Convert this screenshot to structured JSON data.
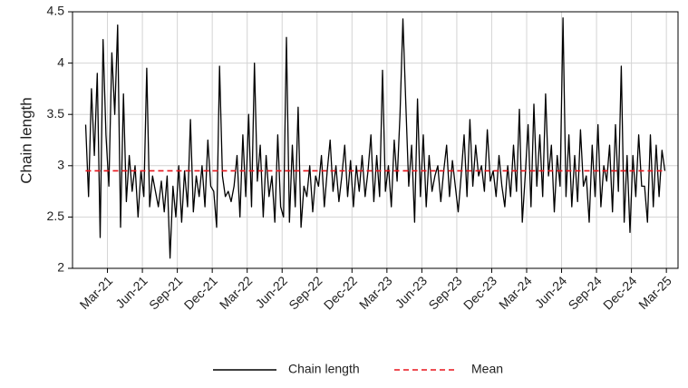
{
  "chart_data": {
    "type": "line",
    "y_label": "Chain length",
    "xlim": [
      "2020-12",
      "2025-04"
    ],
    "ylim": [
      2,
      4.5
    ],
    "yticks": [
      2,
      2.5,
      3,
      3.5,
      4,
      4.5
    ],
    "grid": true,
    "legend": "bottom",
    "xticks": [
      {
        "value": "2021-03",
        "label": "Mar-21"
      },
      {
        "value": "2021-06",
        "label": "Jun-21"
      },
      {
        "value": "2021-09",
        "label": "Sep-21"
      },
      {
        "value": "2021-12",
        "label": "Dec-21"
      },
      {
        "value": "2022-03",
        "label": "Mar-22"
      },
      {
        "value": "2022-06",
        "label": "Jun-22"
      },
      {
        "value": "2022-09",
        "label": "Sep-22"
      },
      {
        "value": "2022-12",
        "label": "Dec-22"
      },
      {
        "value": "2023-03",
        "label": "Mar-23"
      },
      {
        "value": "2023-06",
        "label": "Jun-23"
      },
      {
        "value": "2023-09",
        "label": "Sep-23"
      },
      {
        "value": "2023-12",
        "label": "Dec-23"
      },
      {
        "value": "2024-03",
        "label": "Mar-24"
      },
      {
        "value": "2024-06",
        "label": "Jun-24"
      },
      {
        "value": "2024-09",
        "label": "Sep-24"
      },
      {
        "value": "2024-12",
        "label": "Dec-24"
      },
      {
        "value": "2025-03",
        "label": "Mar-25"
      }
    ],
    "x": [
      "2021-01",
      "2021-01",
      "2021-01",
      "2021-01",
      "2021-02",
      "2021-02",
      "2021-02",
      "2021-02",
      "2021-03",
      "2021-03",
      "2021-03",
      "2021-03",
      "2021-04",
      "2021-04",
      "2021-04",
      "2021-04",
      "2021-05",
      "2021-05",
      "2021-05",
      "2021-05",
      "2021-06",
      "2021-06",
      "2021-06",
      "2021-06",
      "2021-07",
      "2021-07",
      "2021-07",
      "2021-07",
      "2021-08",
      "2021-08",
      "2021-08",
      "2021-08",
      "2021-09",
      "2021-09",
      "2021-09",
      "2021-09",
      "2021-10",
      "2021-10",
      "2021-10",
      "2021-10",
      "2021-11",
      "2021-11",
      "2021-11",
      "2021-11",
      "2021-12",
      "2021-12",
      "2021-12",
      "2021-12",
      "2022-01",
      "2022-01",
      "2022-01",
      "2022-01",
      "2022-02",
      "2022-02",
      "2022-02",
      "2022-02",
      "2022-03",
      "2022-03",
      "2022-03",
      "2022-03",
      "2022-04",
      "2022-04",
      "2022-04",
      "2022-04",
      "2022-05",
      "2022-05",
      "2022-05",
      "2022-05",
      "2022-06",
      "2022-06",
      "2022-06",
      "2022-06",
      "2022-07",
      "2022-07",
      "2022-07",
      "2022-07",
      "2022-08",
      "2022-08",
      "2022-08",
      "2022-08",
      "2022-09",
      "2022-09",
      "2022-09",
      "2022-09",
      "2022-10",
      "2022-10",
      "2022-10",
      "2022-10",
      "2022-11",
      "2022-11",
      "2022-11",
      "2022-11",
      "2022-12",
      "2022-12",
      "2022-12",
      "2022-12",
      "2023-01",
      "2023-01",
      "2023-01",
      "2023-01",
      "2023-02",
      "2023-02",
      "2023-02",
      "2023-02",
      "2023-03",
      "2023-03",
      "2023-03",
      "2023-03",
      "2023-04",
      "2023-04",
      "2023-04",
      "2023-04",
      "2023-05",
      "2023-05",
      "2023-05",
      "2023-05",
      "2023-06",
      "2023-06",
      "2023-06",
      "2023-06",
      "2023-07",
      "2023-07",
      "2023-07",
      "2023-07",
      "2023-08",
      "2023-08",
      "2023-08",
      "2023-08",
      "2023-09",
      "2023-09",
      "2023-09",
      "2023-09",
      "2023-10",
      "2023-10",
      "2023-10",
      "2023-10",
      "2023-11",
      "2023-11",
      "2023-11",
      "2023-11",
      "2023-12",
      "2023-12",
      "2023-12",
      "2023-12",
      "2024-01",
      "2024-01",
      "2024-01",
      "2024-01",
      "2024-02",
      "2024-02",
      "2024-02",
      "2024-02",
      "2024-03",
      "2024-03",
      "2024-03",
      "2024-03",
      "2024-04",
      "2024-04",
      "2024-04",
      "2024-04",
      "2024-05",
      "2024-05",
      "2024-05",
      "2024-05",
      "2024-06",
      "2024-06",
      "2024-06",
      "2024-06",
      "2024-07",
      "2024-07",
      "2024-07",
      "2024-07",
      "2024-08",
      "2024-08",
      "2024-08",
      "2024-08",
      "2024-09",
      "2024-09",
      "2024-09",
      "2024-09",
      "2024-10",
      "2024-10",
      "2024-10",
      "2024-10",
      "2024-11",
      "2024-11",
      "2024-11",
      "2024-11",
      "2024-12",
      "2024-12",
      "2024-12",
      "2024-12",
      "2025-01",
      "2025-01",
      "2025-01",
      "2025-01",
      "2025-02",
      "2025-02",
      "2025-02",
      "2025-02"
    ],
    "series": [
      {
        "name": "Chain length",
        "color": "#000000",
        "values": [
          3.4,
          2.7,
          3.75,
          3.1,
          3.9,
          2.3,
          4.23,
          3.3,
          2.8,
          4.1,
          3.5,
          4.37,
          2.4,
          3.7,
          2.65,
          3.1,
          2.75,
          3.0,
          2.5,
          2.95,
          2.7,
          3.95,
          2.6,
          2.9,
          2.75,
          2.6,
          2.85,
          2.55,
          2.9,
          2.1,
          2.8,
          2.5,
          3.0,
          2.45,
          2.95,
          2.6,
          3.45,
          2.55,
          2.9,
          2.7,
          3.0,
          2.6,
          3.25,
          2.8,
          2.75,
          2.4,
          3.97,
          2.9,
          2.7,
          2.75,
          2.65,
          2.8,
          3.1,
          2.5,
          3.3,
          2.7,
          3.5,
          2.6,
          4.0,
          2.85,
          3.2,
          2.5,
          3.1,
          2.7,
          2.9,
          2.45,
          3.3,
          2.6,
          2.5,
          4.25,
          2.45,
          3.2,
          2.6,
          3.57,
          2.4,
          2.8,
          2.7,
          3.0,
          2.55,
          2.9,
          2.8,
          3.1,
          2.6,
          2.95,
          3.25,
          2.75,
          3.0,
          2.65,
          2.9,
          3.2,
          2.7,
          3.05,
          2.6,
          3.0,
          2.75,
          3.1,
          2.7,
          2.95,
          3.3,
          2.65,
          3.1,
          2.7,
          3.93,
          2.75,
          3.0,
          2.6,
          3.25,
          2.85,
          3.5,
          4.43,
          3.6,
          2.8,
          3.2,
          2.45,
          3.65,
          2.7,
          3.3,
          2.6,
          3.1,
          2.75,
          2.9,
          3.0,
          2.65,
          2.95,
          3.2,
          2.7,
          3.05,
          2.8,
          2.55,
          2.9,
          3.3,
          2.7,
          3.45,
          2.8,
          3.2,
          2.9,
          3.0,
          2.75,
          3.35,
          2.85,
          2.95,
          2.7,
          3.1,
          2.8,
          2.6,
          3.0,
          2.7,
          3.2,
          2.75,
          3.55,
          2.45,
          2.9,
          3.4,
          2.6,
          3.6,
          2.8,
          3.3,
          2.7,
          3.7,
          2.9,
          3.2,
          2.55,
          3.1,
          2.8,
          4.44,
          2.7,
          3.3,
          2.6,
          3.1,
          2.65,
          3.35,
          2.8,
          2.9,
          2.45,
          3.2,
          2.7,
          3.4,
          2.6,
          3.0,
          2.85,
          3.2,
          2.55,
          3.4,
          2.75,
          3.97,
          2.45,
          3.1,
          2.35,
          3.1,
          2.7,
          3.3,
          2.8,
          2.8,
          2.45,
          3.3,
          2.6,
          3.2,
          2.7,
          3.15,
          2.95
        ]
      },
      {
        "name": "Mean",
        "color": "#e8141b",
        "dash": true,
        "value": 2.95
      }
    ]
  }
}
